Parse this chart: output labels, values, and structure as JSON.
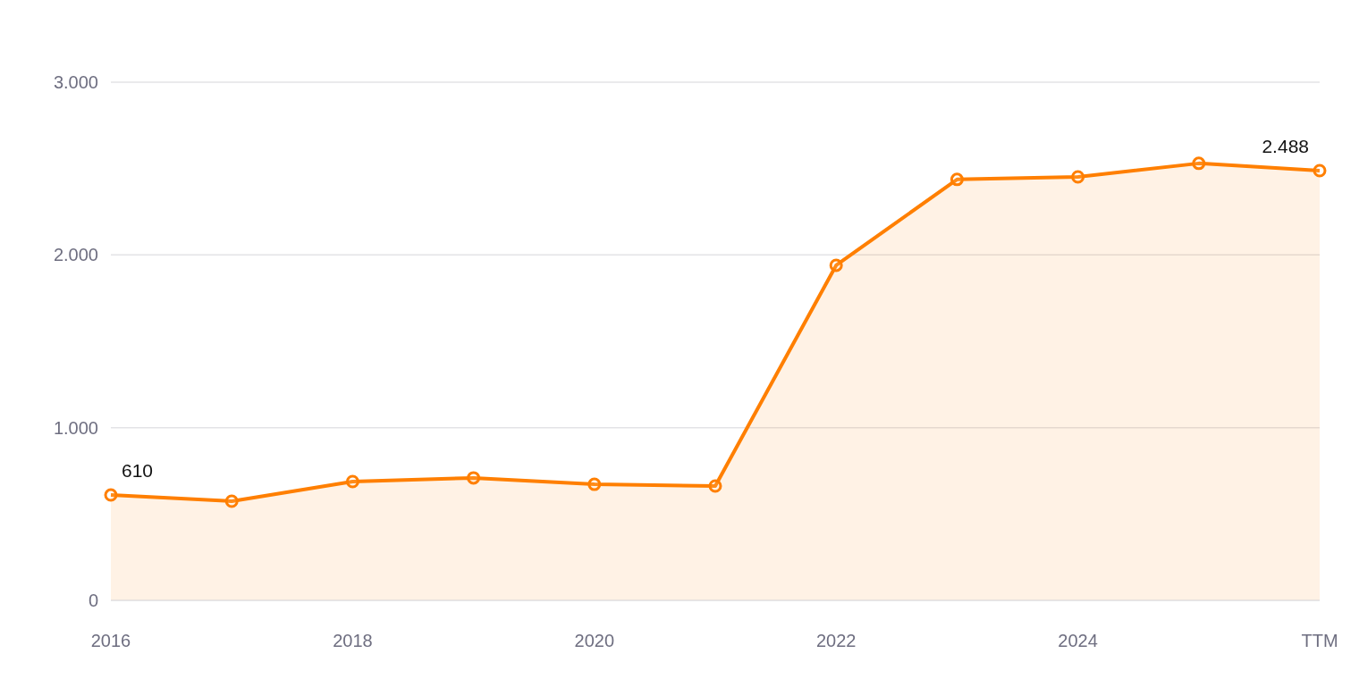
{
  "chart_data": {
    "type": "area",
    "categories": [
      "2016",
      null,
      "2018",
      null,
      "2020",
      null,
      "2022",
      null,
      "2024",
      null,
      "TTM"
    ],
    "series": [
      {
        "color": "#ff7f00",
        "values": [
          610,
          574,
          688,
          709,
          672,
          662,
          1940,
          2437,
          2452,
          2530,
          2488
        ],
        "value_labels": [
          "610",
          null,
          null,
          null,
          null,
          null,
          null,
          null,
          null,
          null,
          "2.488"
        ]
      }
    ],
    "ylim": [
      0,
      3000
    ],
    "yticks": [
      {
        "value": 0,
        "label": "0"
      },
      {
        "value": 1000,
        "label": "1.000"
      },
      {
        "value": 2000,
        "label": "2.000"
      },
      {
        "value": 3000,
        "label": "3.000"
      }
    ],
    "grid": "y",
    "marker": "circle",
    "legend": false
  }
}
